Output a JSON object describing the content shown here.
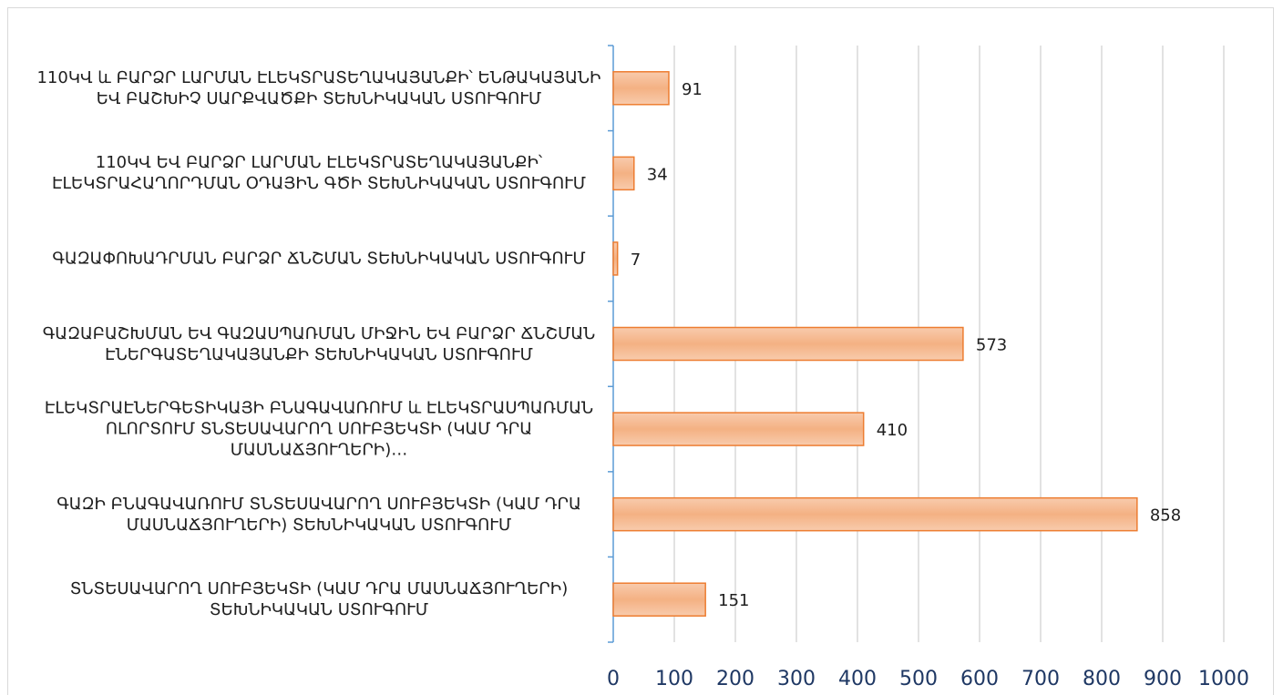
{
  "chart_data": {
    "type": "barh",
    "categories": [
      "110ԿՎ և ԲԱՐՁՐ ԼԱՐՄԱՆ ԷԼԵԿՏՐԱՏԵՂԱԿԱՅԱՆՔԻ՝ ԵՆԹԱԿԱՅԱՆԻ ԵՎ ԲԱՇԽԻՉ ՍԱՐՔՎԱԾՔԻ ՏԵԽՆԻԿԱԿԱՆ ՍՏՈՒԳՈՒՄ",
      "110ԿՎ ԵՎ ԲԱՐՁՐ ԼԱՐՄԱՆ ԷԼԵԿՏՐԱՏԵՂԱԿԱՅԱՆՔԻ՝ ԷԼԵԿՏՐԱՀԱՂՈՐԴՄԱՆ ՕԴԱՅԻՆ ԳԾԻ ՏԵԽՆԻԿԱԿԱՆ ՍՏՈՒԳՈՒՄ",
      "ԳԱԶԱՓՈԽԱԴՐՄԱՆ ԲԱՐՁՐ ՃՆՇՄԱՆ ՏԵԽՆԻԿԱԿԱՆ ՍՏՈՒԳՈՒՄ",
      "ԳԱԶԱԲԱՇԽՄԱՆ ԵՎ ԳԱԶԱՍՊԱՌՄԱՆ ՄԻՋԻՆ ԵՎ ԲԱՐՁՐ ՃՆՇՄԱՆ ԷՆԵՐԳԱՏԵՂԱԿԱՅԱՆՔԻ ՏԵԽՆԻԿԱԿԱՆ ՍՏՈՒԳՈՒՄ",
      "ԷԼԵԿՏՐԱԷՆԵՐԳԵՏԻԿԱՅԻ ԲՆԱԳԱՎԱՌՈՒՄ և ԷԼԵԿՏՐԱՍՊԱՌՄԱՆ ՈԼՈՐՏՈՒՄ ՏՆՏԵՍԱՎԱՐՈՂ ՍՈՒԲՅԵԿՏԻ (ԿԱՄ ԴՐԱ ՄԱՍՆԱՃՅՈՒՂԵՐԻ)…",
      "ԳԱԶԻ ԲՆԱԳԱՎԱՌՈՒՄ ՏՆՏԵՍԱՎԱՐՈՂ ՍՈՒԲՅԵԿՏԻ (ԿԱՄ ԴՐԱ ՄԱՍՆԱՃՅՈՒՂԵՐԻ) ՏԵԽՆԻԿԱԿԱՆ ՍՏՈՒԳՈՒՄ",
      "ՏՆՏԵՍԱՎԱՐՈՂ ՍՈՒԲՅԵԿՏԻ (ԿԱՄ ԴՐԱ ՄԱՍՆԱՃՅՈՒՂԵՐԻ) ՏԵԽՆԻԿԱԿԱՆ ՍՏՈՒԳՈՒՄ"
    ],
    "values": [
      91,
      34,
      7,
      573,
      410,
      858,
      151
    ],
    "color": "#f4b183",
    "edge_color": "#ed7d31",
    "xlim": [
      0,
      1000
    ],
    "xticks": [
      0,
      100,
      200,
      300,
      400,
      500,
      600,
      700,
      800,
      900,
      1000
    ],
    "grid": true
  }
}
